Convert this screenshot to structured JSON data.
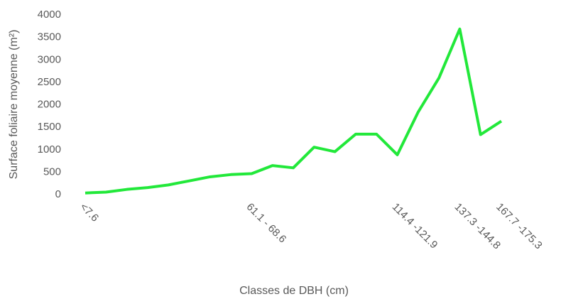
{
  "chart_data": {
    "type": "line",
    "x_label": "Classes de DBH (cm)",
    "y_label": "Surface foliaire moyenne (m²)",
    "categories": [
      "<7.6",
      null,
      null,
      null,
      null,
      null,
      null,
      null,
      "61.1 - 68.6",
      null,
      null,
      null,
      null,
      null,
      null,
      "114.4 -121.9",
      null,
      null,
      "137.3 -144.8",
      null,
      "167.7 -175.3"
    ],
    "series": [
      {
        "name": "Surface foliaire moyenne",
        "color": "#22e83a",
        "values": [
          20,
          40,
          100,
          140,
          200,
          290,
          380,
          430,
          450,
          630,
          580,
          1040,
          940,
          1330,
          1330,
          870,
          1820,
          2580,
          3670,
          1320,
          1620
        ]
      }
    ],
    "ylim": [
      0,
      4000
    ],
    "yticks": [
      0,
      500,
      1000,
      1500,
      2000,
      2500,
      3000,
      3500,
      4000
    ],
    "grid": false
  }
}
